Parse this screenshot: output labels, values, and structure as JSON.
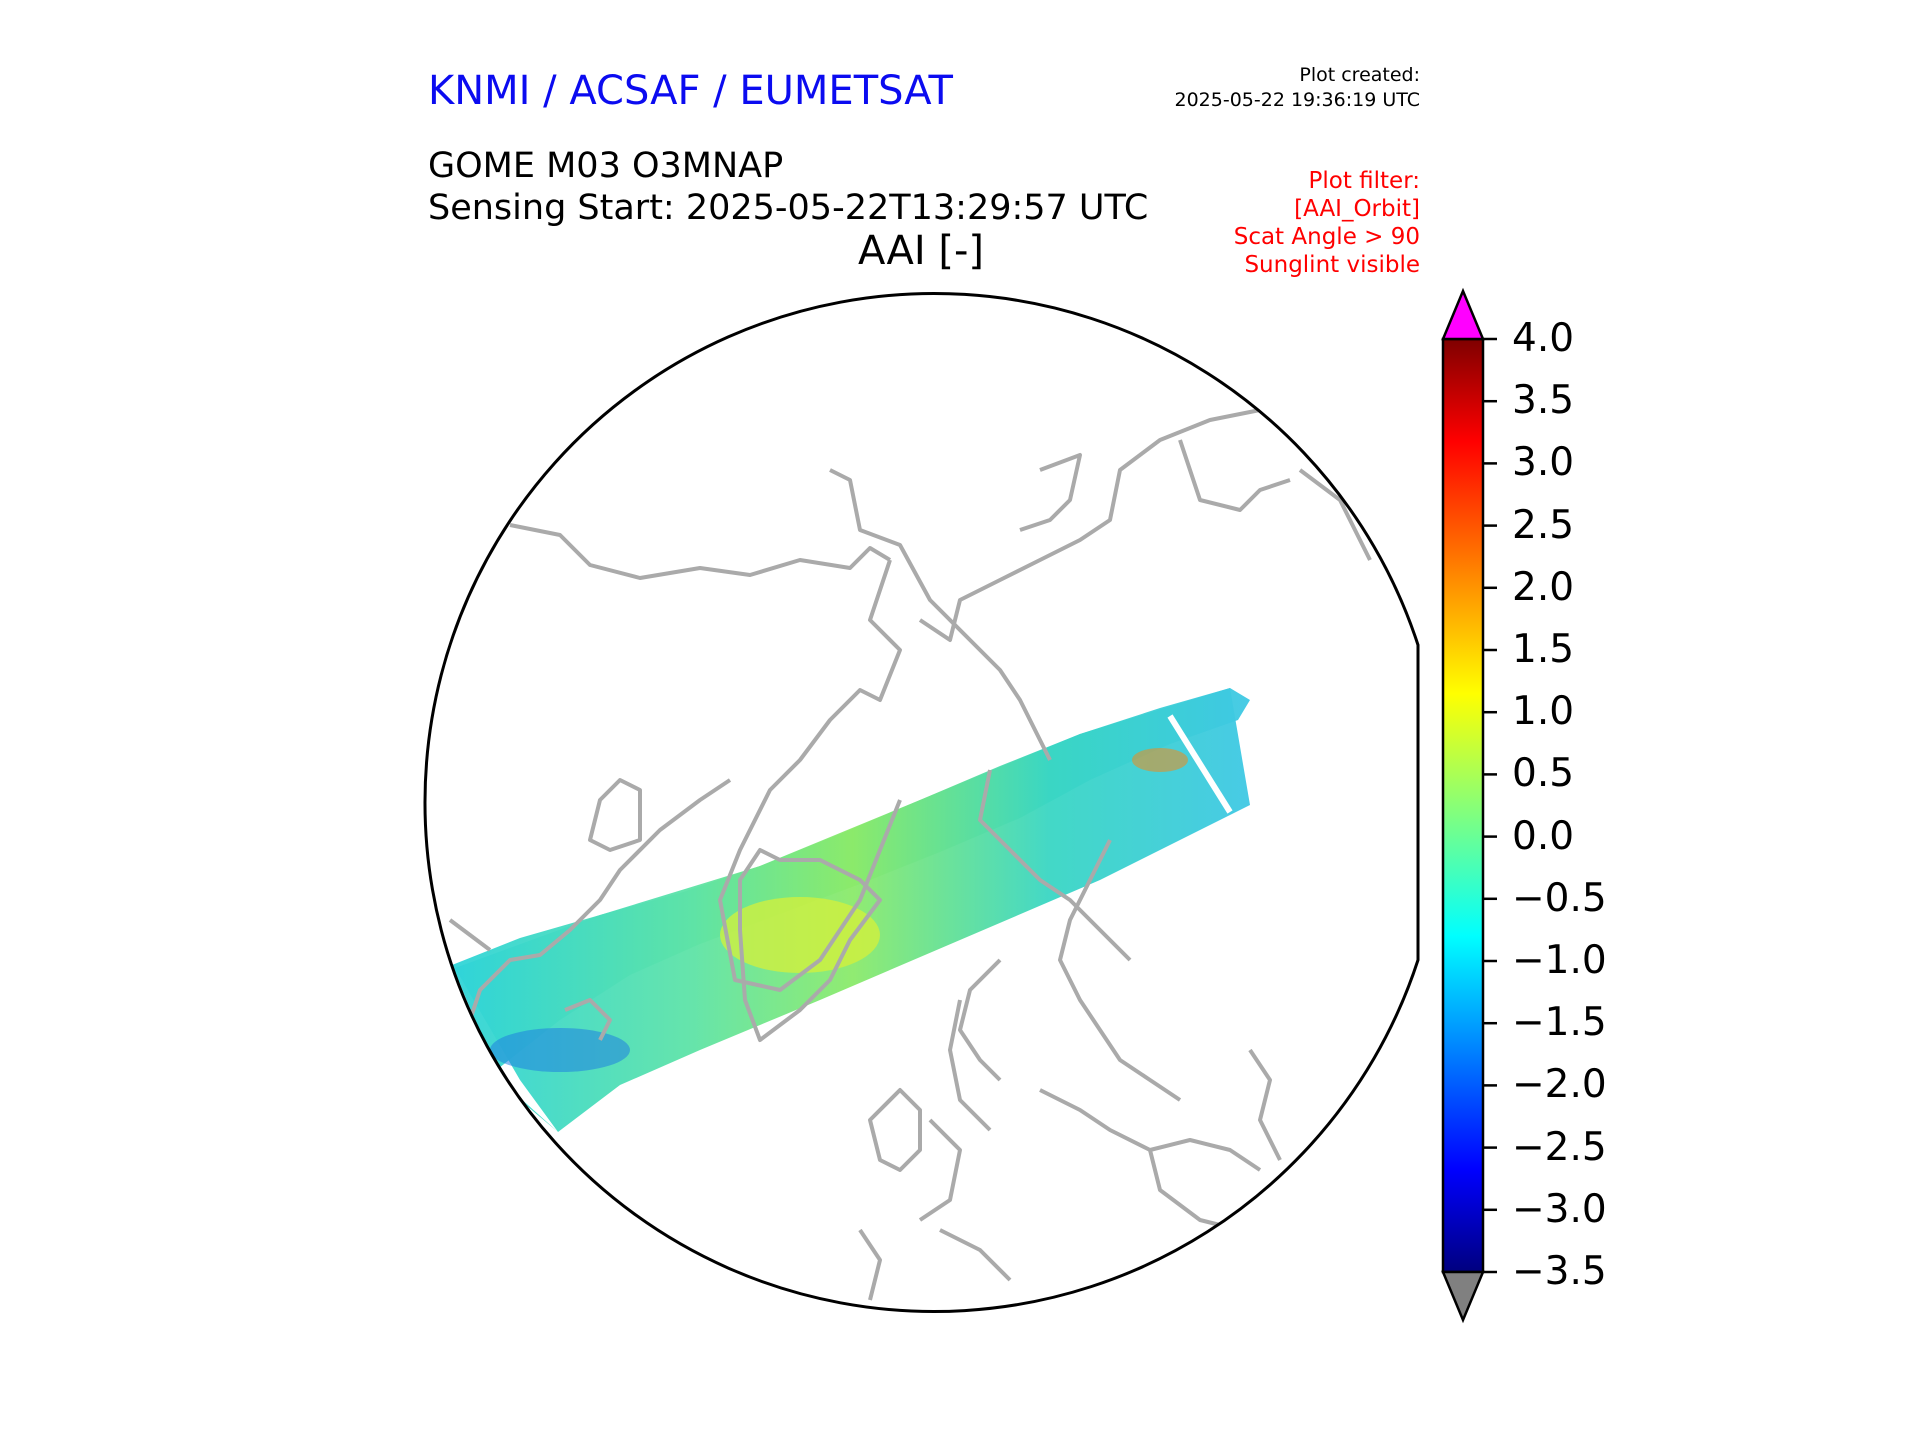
{
  "header": {
    "agency": "KNMI / ACSAF / EUMETSAT",
    "plot_created_label": "Plot created:",
    "plot_created_value": "2025-05-22 19:36:19 UTC",
    "product": "GOME M03 O3MNAP",
    "sensing_start": "Sensing Start: 2025-05-22T13:29:57 UTC",
    "map_title": "AAI [-]"
  },
  "plot_filter": [
    "Plot filter:",
    "[AAI_Orbit]",
    "Scat Angle > 90",
    "Sunglint visible"
  ],
  "colorbar": {
    "ticks": [
      "4.0",
      "3.5",
      "3.0",
      "2.5",
      "2.0",
      "1.5",
      "1.0",
      "0.5",
      "0.0",
      "−0.5",
      "−1.0",
      "−1.5",
      "−2.0",
      "−2.5",
      "−3.0",
      "−3.5"
    ],
    "min": -3.5,
    "max": 4.0,
    "over_color": "#ff00ff",
    "under_color": "#808080",
    "colormap": "jet"
  },
  "map": {
    "projection": "north polar orthographic",
    "coastline_color": "#aaaaaa",
    "swath": "GOME-2 orbit swath over North America, Greenland and Svalbard"
  }
}
